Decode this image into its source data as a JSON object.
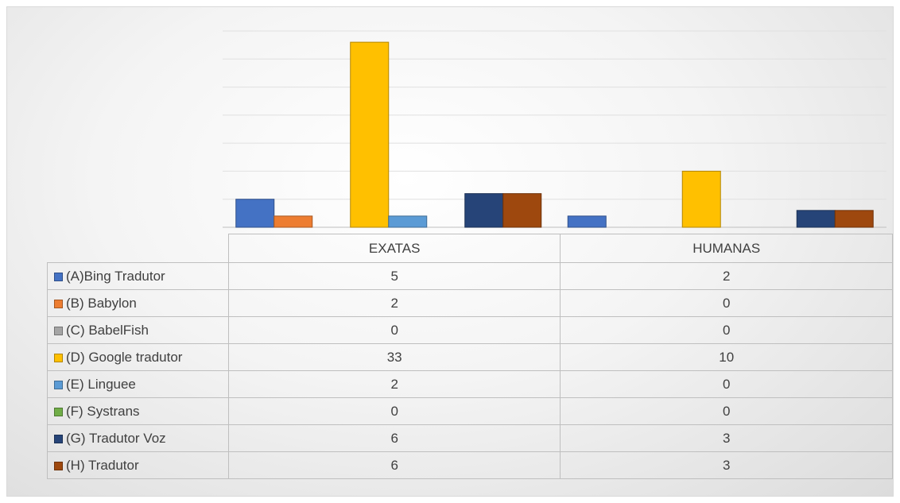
{
  "chart_data": {
    "type": "bar",
    "categories": [
      "EXATAS",
      "HUMANAS"
    ],
    "series": [
      {
        "name": "(A)Bing Tradutor",
        "values": [
          5,
          2
        ],
        "color": "#4472c4"
      },
      {
        "name": "(B) Babylon",
        "values": [
          2,
          0
        ],
        "color": "#ed7d31"
      },
      {
        "name": "(C) BabelFish",
        "values": [
          0,
          0
        ],
        "color": "#a5a5a5"
      },
      {
        "name": "(D) Google tradutor",
        "values": [
          33,
          10
        ],
        "color": "#ffc000"
      },
      {
        "name": "(E) Linguee",
        "values": [
          2,
          0
        ],
        "color": "#5b9bd5"
      },
      {
        "name": "(F) Systrans",
        "values": [
          0,
          0
        ],
        "color": "#70ad47"
      },
      {
        "name": "(G) Tradutor Voz",
        "values": [
          6,
          3
        ],
        "color": "#264478"
      },
      {
        "name": "(H) Tradutor",
        "values": [
          6,
          3
        ],
        "color": "#9e480e"
      }
    ],
    "ylim": [
      0,
      35
    ],
    "grid": true,
    "legend": "data-table"
  }
}
